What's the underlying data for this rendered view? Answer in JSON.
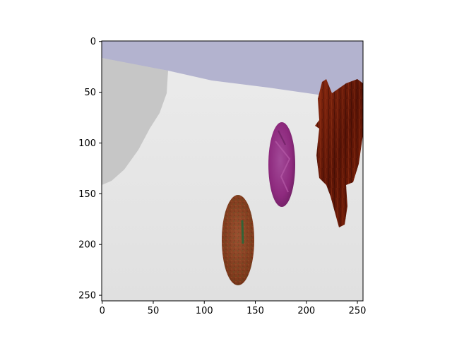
{
  "image_axes": {
    "x_ticks": [
      0,
      50,
      100,
      150,
      200,
      250
    ],
    "y_ticks": [
      0,
      50,
      100,
      150,
      200,
      250
    ],
    "x_extent": [
      -0.5,
      255.5
    ],
    "y_extent": [
      255.5,
      -0.5
    ]
  },
  "scene": {
    "sky_color": "#b3b3cf",
    "floor_color": "#e2e2e2",
    "shadow_color": "#c6c6c6",
    "objects": [
      {
        "name": "purple-ovoid",
        "color": "#8e2a7e"
      },
      {
        "name": "brown-speckled-ovoid",
        "color": "#8a3f1e"
      },
      {
        "name": "dark-red-textured-shape",
        "color": "#6a1a08"
      }
    ]
  }
}
